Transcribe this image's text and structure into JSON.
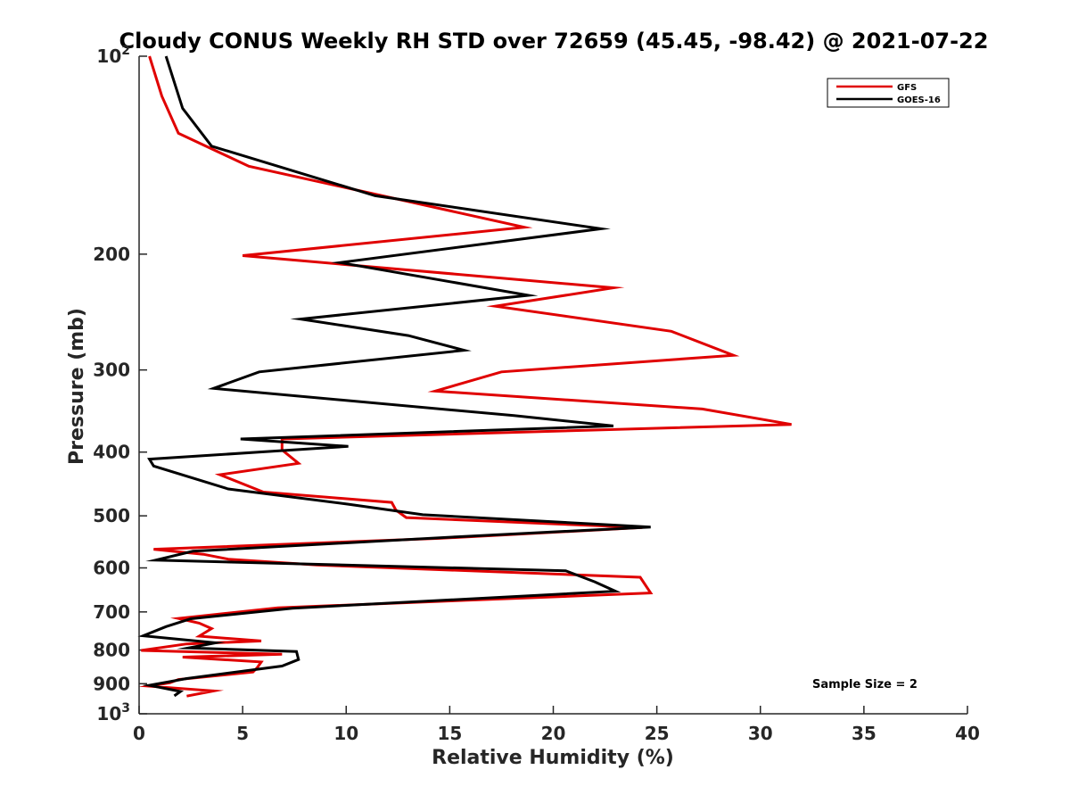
{
  "chart_data": {
    "type": "line",
    "title": "Cloudy CONUS Weekly RH STD over 72659 (45.45, -98.42) @ 2021-07-22",
    "xlabel": "Relative Humidity (%)",
    "ylabel": "Pressure (mb)",
    "xlim": [
      0,
      40
    ],
    "ylim": [
      100,
      1000
    ],
    "y_scale": "log",
    "y_reversed": true,
    "grid": false,
    "legend_position": "top-right",
    "x_ticks": [
      0,
      5,
      10,
      15,
      20,
      25,
      30,
      35,
      40
    ],
    "y_ticks": [
      {
        "value": 100,
        "base": "10",
        "exp": "2"
      },
      {
        "value": 200,
        "label": "200"
      },
      {
        "value": 300,
        "label": "300"
      },
      {
        "value": 400,
        "label": "400"
      },
      {
        "value": 500,
        "label": "500"
      },
      {
        "value": 600,
        "label": "600"
      },
      {
        "value": 700,
        "label": "700"
      },
      {
        "value": 800,
        "label": "800"
      },
      {
        "value": 900,
        "label": "900"
      },
      {
        "value": 1000,
        "base": "10",
        "exp": "3"
      }
    ],
    "annotation": "Sample Size = 2",
    "series": [
      {
        "name": "GFS",
        "color": "#e00000",
        "points": [
          [
            0.5,
            100
          ],
          [
            1.1,
            115
          ],
          [
            1.9,
            131
          ],
          [
            5.3,
            147
          ],
          [
            9.0,
            156
          ],
          [
            18.6,
            182
          ],
          [
            5.0,
            201
          ],
          [
            22.9,
            225
          ],
          [
            17.2,
            240
          ],
          [
            25.7,
            262
          ],
          [
            28.7,
            285
          ],
          [
            17.5,
            302
          ],
          [
            14.3,
            323
          ],
          [
            27.2,
            344
          ],
          [
            31.5,
            363
          ],
          [
            6.9,
            382
          ],
          [
            6.9,
            397
          ],
          [
            7.7,
            416
          ],
          [
            3.9,
            433
          ],
          [
            6.0,
            460
          ],
          [
            12.2,
            477
          ],
          [
            12.4,
            490
          ],
          [
            12.9,
            503
          ],
          [
            24.3,
            521
          ],
          [
            14.5,
            541
          ],
          [
            0.7,
            562
          ],
          [
            3.1,
            572
          ],
          [
            4.3,
            582
          ],
          [
            8.6,
            594
          ],
          [
            24.2,
            620
          ],
          [
            24.7,
            655
          ],
          [
            6.7,
            690
          ],
          [
            1.9,
            716
          ],
          [
            2.9,
            728
          ],
          [
            3.5,
            742
          ],
          [
            2.9,
            762
          ],
          [
            5.9,
            775
          ],
          [
            2.3,
            783
          ],
          [
            0.1,
            801
          ],
          [
            6.9,
            812
          ],
          [
            2.1,
            820
          ],
          [
            5.9,
            834
          ],
          [
            5.7,
            851
          ],
          [
            5.5,
            864
          ],
          [
            1.9,
            887
          ],
          [
            1.5,
            897
          ],
          [
            0.5,
            908
          ],
          [
            3.6,
            923
          ],
          [
            2.3,
            940
          ]
        ]
      },
      {
        "name": "GOES-16",
        "color": "#000000",
        "points": [
          [
            1.3,
            100
          ],
          [
            2.1,
            120
          ],
          [
            3.5,
            137
          ],
          [
            11.4,
            163
          ],
          [
            22.3,
            183
          ],
          [
            9.7,
            206
          ],
          [
            18.8,
            231
          ],
          [
            7.8,
            251
          ],
          [
            13.0,
            266
          ],
          [
            15.7,
            280
          ],
          [
            5.8,
            302
          ],
          [
            3.6,
            320
          ],
          [
            18.1,
            352
          ],
          [
            22.9,
            365
          ],
          [
            4.9,
            382
          ],
          [
            10.1,
            392
          ],
          [
            0.5,
            410
          ],
          [
            0.7,
            420
          ],
          [
            4.3,
            455
          ],
          [
            10.1,
            480
          ],
          [
            13.7,
            498
          ],
          [
            24.7,
            520
          ],
          [
            15.4,
            538
          ],
          [
            2.6,
            566
          ],
          [
            0.8,
            584
          ],
          [
            20.6,
            606
          ],
          [
            22.0,
            630
          ],
          [
            23.0,
            651
          ],
          [
            7.4,
            691
          ],
          [
            2.5,
            717
          ],
          [
            1.3,
            737
          ],
          [
            0.2,
            761
          ],
          [
            3.7,
            780
          ],
          [
            2.4,
            794
          ],
          [
            7.6,
            804
          ],
          [
            7.7,
            827
          ],
          [
            6.9,
            846
          ],
          [
            2.3,
            884
          ],
          [
            0.5,
            905
          ],
          [
            2.0,
            925
          ],
          [
            1.7,
            939
          ]
        ]
      }
    ]
  }
}
